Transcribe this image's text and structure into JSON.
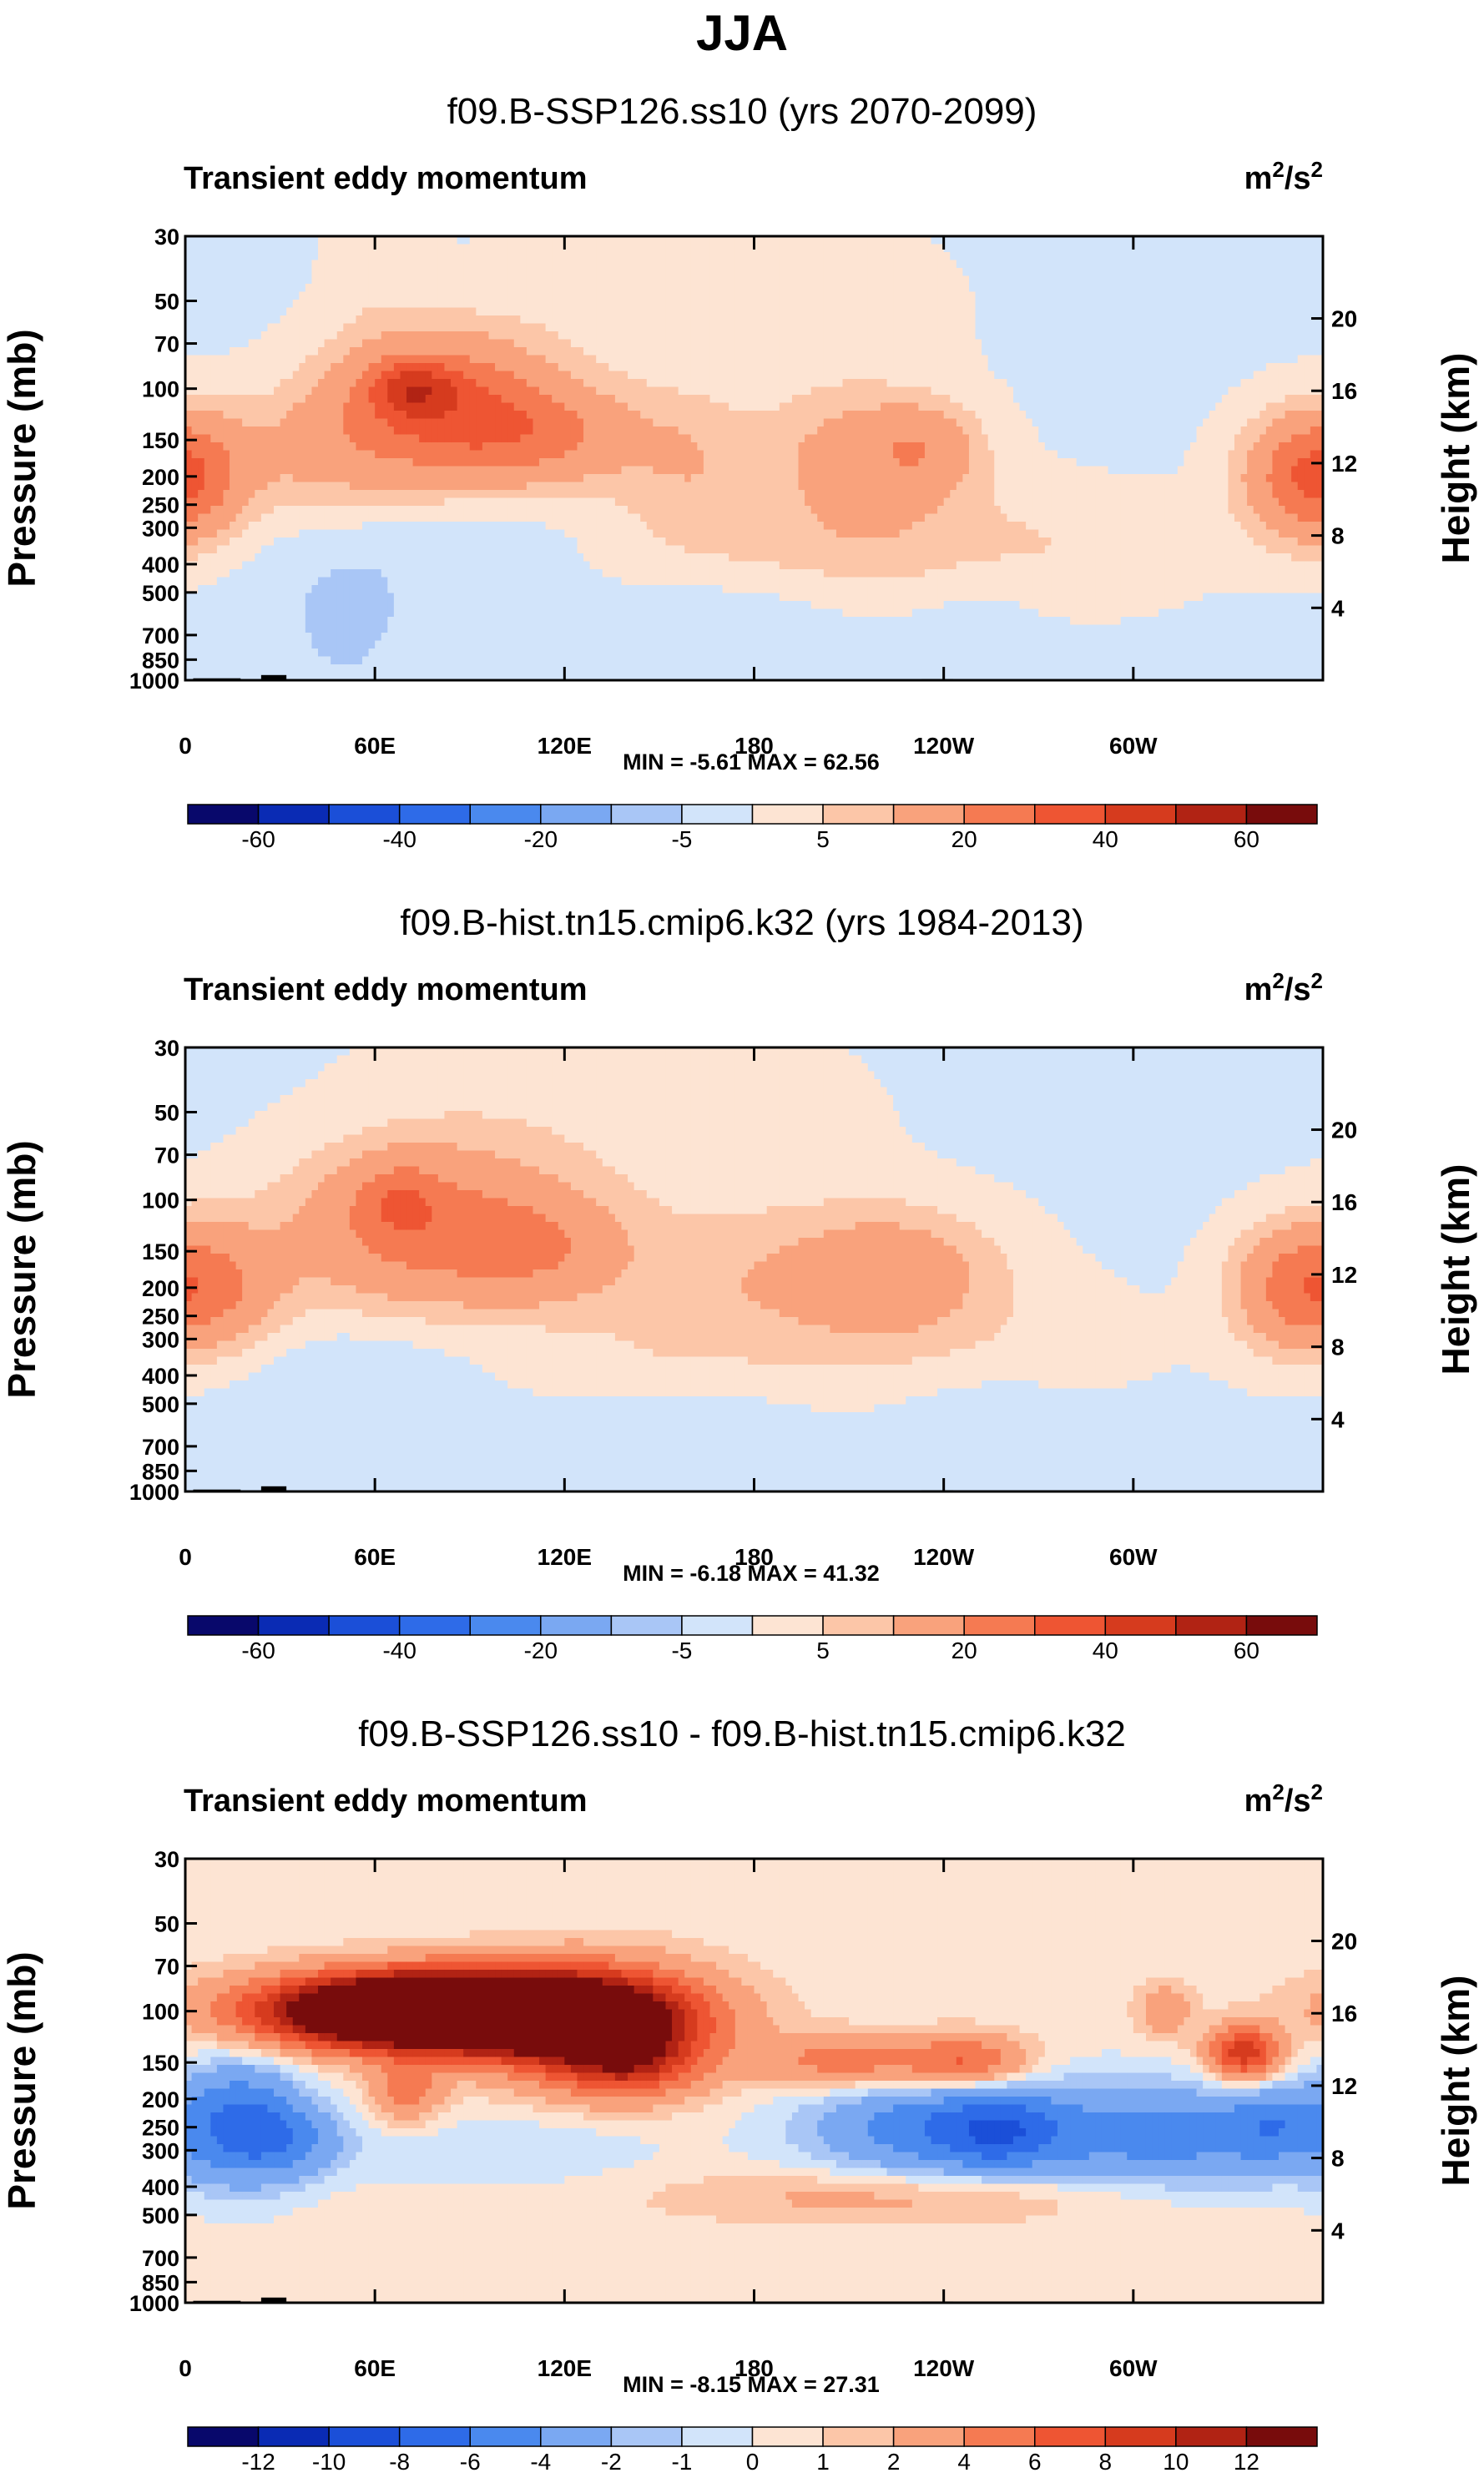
{
  "season": "JJA",
  "colors": {
    "fill": [
      "#08086b",
      "#0a2bb4",
      "#1b4fd8",
      "#2e6be8",
      "#4a89ee",
      "#7aa8f2",
      "#a9c6f6",
      "#d2e4fa",
      "#fde4d3",
      "#fcc6a8",
      "#f9a27c",
      "#f57a52",
      "#ee5533",
      "#d63b1e",
      "#b12314",
      "#780c0c"
    ],
    "topo": "#000000"
  },
  "chart_data": [
    {
      "type": "contour",
      "title": "f09.B-SSP126.ss10 (yrs 2070-2099)",
      "field_label": "Transient eddy momentum",
      "units": {
        "base": "m",
        "sup1": "2",
        "mid": "/s",
        "sup2": "2"
      },
      "ylabel_left": "Pressure (mb)",
      "ylabel_right": "Height (km)",
      "x_ticks": [
        "0",
        "60E",
        "120E",
        "180",
        "120W",
        "60W"
      ],
      "x_tick_lon": [
        0,
        60,
        120,
        180,
        240,
        300
      ],
      "xlim": [
        0,
        360
      ],
      "p_ticks": [
        "30",
        "50",
        "70",
        "100",
        "150",
        "200",
        "250",
        "300",
        "400",
        "500",
        "700",
        "850",
        "1000"
      ],
      "p_vals": [
        30,
        50,
        70,
        100,
        150,
        200,
        250,
        300,
        400,
        500,
        700,
        850,
        1000
      ],
      "z_ticks": [
        "20",
        "16",
        "12",
        "8",
        "4"
      ],
      "z_vals": [
        20,
        16,
        12,
        8,
        4
      ],
      "ylim_mb": [
        1000,
        30
      ],
      "stats": "MIN = -5.61  MAX = 62.56",
      "min": -5.61,
      "max": 62.56,
      "levels": [
        -70,
        -60,
        -50,
        -40,
        -30,
        -20,
        -10,
        -5,
        0,
        5,
        10,
        20,
        30,
        40,
        50,
        60
      ],
      "colorbar_labels": [
        "-60",
        "-40",
        "-20",
        "-5",
        "5",
        "20",
        "40",
        "60"
      ],
      "colorbar_label_index": [
        1,
        3,
        5,
        7,
        9,
        11,
        13,
        15
      ],
      "background": -1,
      "features": [
        {
          "lon": 50,
          "p": 700,
          "wl": 12,
          "wp": 0.4,
          "a": -3.5
        },
        {
          "lon": 175,
          "p": 600,
          "wl": 25,
          "wp": 0.5,
          "a": -3
        },
        {
          "lon": 250,
          "p": 650,
          "wl": 15,
          "wp": 0.5,
          "a": -3
        },
        {
          "lon": 90,
          "p": 330,
          "wl": 25,
          "wp": 0.2,
          "a": -2.5
        },
        {
          "lon": 55,
          "p": 500,
          "wl": 25,
          "wp": 0.4,
          "a": -3
        },
        {
          "lon": 140,
          "p": 45,
          "wl": 30,
          "wp": 0.5,
          "a": 4
        },
        {
          "lon": 200,
          "p": 55,
          "wl": 30,
          "wp": 0.5,
          "a": 4
        },
        {
          "lon": 60,
          "p": 40,
          "wl": 12,
          "wp": 0.5,
          "a": 3
        },
        {
          "lon": 160,
          "p": 300,
          "wl": 25,
          "wp": 0.3,
          "a": 4
        },
        {
          "lon": 200,
          "p": 350,
          "wl": 35,
          "wp": 0.3,
          "a": 6
        },
        {
          "lon": 260,
          "p": 350,
          "wl": 40,
          "wp": 0.35,
          "a": 6
        },
        {
          "lon": 80,
          "p": 115,
          "wl": 24,
          "wp": 0.4,
          "a": 32
        },
        {
          "lon": 72,
          "p": 100,
          "wl": 9,
          "wp": 0.14,
          "a": 22
        },
        {
          "lon": 115,
          "p": 145,
          "wl": 22,
          "wp": 0.28,
          "a": 18
        },
        {
          "lon": 40,
          "p": 170,
          "wl": 20,
          "wp": 0.35,
          "a": 10
        },
        {
          "lon": 3,
          "p": 200,
          "wl": 12,
          "wp": 0.35,
          "a": 18
        },
        {
          "lon": 352,
          "p": 200,
          "wl": 14,
          "wp": 0.35,
          "a": 20
        },
        {
          "lon": 215,
          "p": 170,
          "wl": 22,
          "wp": 0.35,
          "a": 15
        },
        {
          "lon": 235,
          "p": 160,
          "wl": 12,
          "wp": 0.25,
          "a": 10
        },
        {
          "lon": 160,
          "p": 170,
          "wl": 15,
          "wp": 0.35,
          "a": 8
        }
      ],
      "topo": [
        {
          "lon": 10,
          "w": 15,
          "p": 985
        },
        {
          "lon": 28,
          "w": 8,
          "p": 960
        },
        {
          "lon": 238,
          "w": 10,
          "p": 990
        }
      ]
    },
    {
      "type": "contour",
      "title": "f09.B-hist.tn15.cmip6.k32 (yrs 1984-2013)",
      "field_label": "Transient eddy momentum",
      "units": {
        "base": "m",
        "sup1": "2",
        "mid": "/s",
        "sup2": "2"
      },
      "ylabel_left": "Pressure (mb)",
      "ylabel_right": "Height (km)",
      "x_ticks": [
        "0",
        "60E",
        "120E",
        "180",
        "120W",
        "60W"
      ],
      "x_tick_lon": [
        0,
        60,
        120,
        180,
        240,
        300
      ],
      "xlim": [
        0,
        360
      ],
      "p_ticks": [
        "30",
        "50",
        "70",
        "100",
        "150",
        "200",
        "250",
        "300",
        "400",
        "500",
        "700",
        "850",
        "1000"
      ],
      "p_vals": [
        30,
        50,
        70,
        100,
        150,
        200,
        250,
        300,
        400,
        500,
        700,
        850,
        1000
      ],
      "z_ticks": [
        "20",
        "16",
        "12",
        "8",
        "4"
      ],
      "z_vals": [
        20,
        16,
        12,
        8,
        4
      ],
      "ylim_mb": [
        1000,
        30
      ],
      "stats": "MIN = -6.18  MAX = 41.32",
      "min": -6.18,
      "max": 41.32,
      "levels": [
        -70,
        -60,
        -50,
        -40,
        -30,
        -20,
        -10,
        -5,
        0,
        5,
        10,
        20,
        30,
        40,
        50,
        60
      ],
      "colorbar_labels": [
        "-60",
        "-40",
        "-20",
        "-5",
        "5",
        "20",
        "40",
        "60"
      ],
      "colorbar_label_index": [
        1,
        3,
        5,
        7,
        9,
        11,
        13,
        15
      ],
      "background": -1,
      "features": [
        {
          "lon": 30,
          "p": 700,
          "wl": 20,
          "wp": 0.4,
          "a": -3
        },
        {
          "lon": 160,
          "p": 650,
          "wl": 25,
          "wp": 0.5,
          "a": -3
        },
        {
          "lon": 250,
          "p": 600,
          "wl": 20,
          "wp": 0.5,
          "a": -3
        },
        {
          "lon": 60,
          "p": 330,
          "wl": 25,
          "wp": 0.2,
          "a": -2.5
        },
        {
          "lon": 100,
          "p": 50,
          "wl": 35,
          "wp": 0.6,
          "a": 3
        },
        {
          "lon": 170,
          "p": 60,
          "wl": 35,
          "wp": 0.6,
          "a": 3.5
        },
        {
          "lon": 230,
          "p": 300,
          "wl": 45,
          "wp": 0.35,
          "a": 6
        },
        {
          "lon": 150,
          "p": 330,
          "wl": 30,
          "wp": 0.3,
          "a": 5
        },
        {
          "lon": 75,
          "p": 125,
          "wl": 30,
          "wp": 0.45,
          "a": 24
        },
        {
          "lon": 67,
          "p": 100,
          "wl": 9,
          "wp": 0.2,
          "a": 12
        },
        {
          "lon": 115,
          "p": 150,
          "wl": 20,
          "wp": 0.3,
          "a": 14
        },
        {
          "lon": 8,
          "p": 200,
          "wl": 16,
          "wp": 0.35,
          "a": 20
        },
        {
          "lon": 350,
          "p": 200,
          "wl": 14,
          "wp": 0.35,
          "a": 18
        },
        {
          "lon": 222,
          "p": 170,
          "wl": 25,
          "wp": 0.35,
          "a": 16
        },
        {
          "lon": 170,
          "p": 180,
          "wl": 20,
          "wp": 0.35,
          "a": 6
        }
      ],
      "topo": [
        {
          "lon": 10,
          "w": 15,
          "p": 985
        },
        {
          "lon": 28,
          "w": 8,
          "p": 960
        },
        {
          "lon": 238,
          "w": 10,
          "p": 990
        }
      ]
    },
    {
      "type": "contour",
      "title": "f09.B-SSP126.ss10 - f09.B-hist.tn15.cmip6.k32",
      "field_label": "Transient eddy momentum",
      "units": {
        "base": "m",
        "sup1": "2",
        "mid": "/s",
        "sup2": "2"
      },
      "ylabel_left": "Pressure (mb)",
      "ylabel_right": "Height (km)",
      "x_ticks": [
        "0",
        "60E",
        "120E",
        "180",
        "120W",
        "60W"
      ],
      "x_tick_lon": [
        0,
        60,
        120,
        180,
        240,
        300
      ],
      "xlim": [
        0,
        360
      ],
      "p_ticks": [
        "30",
        "50",
        "70",
        "100",
        "150",
        "200",
        "250",
        "300",
        "400",
        "500",
        "700",
        "850",
        "1000"
      ],
      "p_vals": [
        30,
        50,
        70,
        100,
        150,
        200,
        250,
        300,
        400,
        500,
        700,
        850,
        1000
      ],
      "z_ticks": [
        "20",
        "16",
        "12",
        "8",
        "4"
      ],
      "z_vals": [
        20,
        16,
        12,
        8,
        4
      ],
      "ylim_mb": [
        1000,
        30
      ],
      "stats": "MIN = -8.15  MAX = 27.31",
      "min": -8.15,
      "max": 27.31,
      "levels": [
        -14,
        -12,
        -10,
        -8,
        -6,
        -4,
        -2,
        -1,
        0,
        1,
        2,
        4,
        6,
        8,
        10,
        12
      ],
      "colorbar_labels": [
        "-12",
        "-10",
        "-8",
        "-6",
        "-4",
        "-2",
        "-1",
        "0",
        "1",
        "2",
        "4",
        "6",
        "8",
        "10",
        "12"
      ],
      "colorbar_label_index": [
        1,
        2,
        3,
        4,
        5,
        6,
        7,
        8,
        9,
        10,
        11,
        12,
        13,
        14,
        15
      ],
      "background": 0.5,
      "features": [
        {
          "lon": 18,
          "p": 240,
          "wl": 14,
          "wp": 0.35,
          "a": -6
        },
        {
          "lon": 35,
          "p": 280,
          "wl": 12,
          "wp": 0.2,
          "a": -3
        },
        {
          "lon": 240,
          "p": 250,
          "wl": 30,
          "wp": 0.3,
          "a": -6
        },
        {
          "lon": 258,
          "p": 260,
          "wl": 12,
          "wp": 0.2,
          "a": -3
        },
        {
          "lon": 315,
          "p": 270,
          "wl": 35,
          "wp": 0.3,
          "a": -5
        },
        {
          "lon": 345,
          "p": 240,
          "wl": 10,
          "wp": 0.2,
          "a": -3
        },
        {
          "lon": 100,
          "p": 300,
          "wl": 35,
          "wp": 0.2,
          "a": -1.5
        },
        {
          "lon": 70,
          "p": 140,
          "wl": 10,
          "wp": 0.2,
          "a": -1.5
        },
        {
          "lon": 230,
          "p": 430,
          "wl": 50,
          "wp": 0.15,
          "a": 2.5
        },
        {
          "lon": 80,
          "p": 100,
          "wl": 35,
          "wp": 0.2,
          "a": 30
        },
        {
          "lon": 130,
          "p": 110,
          "wl": 25,
          "wp": 0.3,
          "a": 12
        },
        {
          "lon": 140,
          "p": 150,
          "wl": 15,
          "wp": 0.2,
          "a": 6
        },
        {
          "lon": 70,
          "p": 180,
          "wl": 8,
          "wp": 0.2,
          "a": 5
        },
        {
          "lon": 210,
          "p": 150,
          "wl": 20,
          "wp": 0.15,
          "a": 5
        },
        {
          "lon": 248,
          "p": 150,
          "wl": 14,
          "wp": 0.15,
          "a": 6
        },
        {
          "lon": 335,
          "p": 140,
          "wl": 8,
          "wp": 0.15,
          "a": 9
        },
        {
          "lon": 310,
          "p": 100,
          "wl": 6,
          "wp": 0.15,
          "a": 3
        }
      ],
      "topo": [
        {
          "lon": 10,
          "w": 15,
          "p": 985
        },
        {
          "lon": 28,
          "w": 8,
          "p": 960
        },
        {
          "lon": 238,
          "w": 10,
          "p": 990
        }
      ]
    }
  ]
}
